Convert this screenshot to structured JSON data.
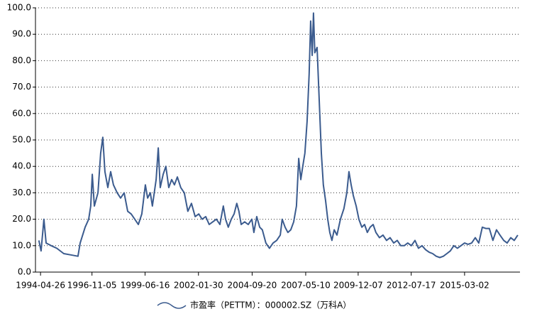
{
  "chart_data": {
    "type": "line",
    "x": [
      "1994-03-27",
      "1994-05-06",
      "1994-06-25",
      "1994-08-04",
      "1994-11-02",
      "1995-02-12",
      "1995-06-17",
      "1995-10-22",
      "1996-02-27",
      "1996-04-07",
      "1996-07-05",
      "1996-09-07",
      "1996-10-14",
      "1996-11-10",
      "1996-12-17",
      "1997-02-20",
      "1997-04-10",
      "1997-05-18",
      "1997-06-25",
      "1997-08-16",
      "1997-10-06",
      "1997-11-25",
      "1998-02-01",
      "1998-04-03",
      "1998-06-05",
      "1998-08-08",
      "1998-10-10",
      "1998-12-13",
      "1999-02-15",
      "1999-04-18",
      "1999-06-21",
      "1999-08-01",
      "1999-09-19",
      "1999-10-26",
      "2000-01-01",
      "2000-02-08",
      "2000-03-15",
      "2000-05-06",
      "2000-06-24",
      "2000-08-15",
      "2000-10-06",
      "2000-11-25",
      "2001-01-16",
      "2001-03-18",
      "2001-05-21",
      "2001-07-24",
      "2001-09-26",
      "2001-12-01",
      "2002-02-04",
      "2002-04-06",
      "2002-06-09",
      "2002-08-11",
      "2002-10-14",
      "2002-12-17",
      "2003-02-19",
      "2003-04-22",
      "2003-06-01",
      "2003-07-20",
      "2003-09-11",
      "2003-11-01",
      "2003-12-20",
      "2004-01-27",
      "2004-03-07",
      "2004-05-09",
      "2004-07-12",
      "2004-09-14",
      "2004-10-22",
      "2004-12-12",
      "2005-02-03",
      "2005-03-22",
      "2005-05-25",
      "2005-07-27",
      "2005-10-02",
      "2005-12-04",
      "2006-02-07",
      "2006-03-14",
      "2006-05-05",
      "2006-06-24",
      "2006-08-15",
      "2006-10-06",
      "2006-11-25",
      "2007-01-04",
      "2007-02-11",
      "2007-03-18",
      "2007-04-25",
      "2007-06-04",
      "2007-07-11",
      "2007-08-07",
      "2007-09-03",
      "2007-09-26",
      "2007-10-21",
      "2007-12-01",
      "2008-01-08",
      "2008-02-15",
      "2008-03-22",
      "2008-05-01",
      "2008-06-08",
      "2008-07-15",
      "2008-08-23",
      "2008-10-02",
      "2008-11-21",
      "2009-01-23",
      "2009-03-26",
      "2009-05-17",
      "2009-06-24",
      "2009-08-03",
      "2009-09-10",
      "2009-11-01",
      "2009-12-20",
      "2010-02-11",
      "2010-04-01",
      "2010-05-20",
      "2010-07-11",
      "2010-09-02",
      "2010-10-21",
      "2010-12-24",
      "2011-02-26",
      "2011-05-01",
      "2011-07-03",
      "2011-09-06",
      "2011-11-09",
      "2012-01-11",
      "2012-03-14",
      "2012-05-16",
      "2012-07-19",
      "2012-09-22",
      "2012-11-24",
      "2013-01-27",
      "2013-04-01",
      "2013-06-04",
      "2013-08-06",
      "2013-10-09",
      "2013-12-12",
      "2014-02-14",
      "2014-04-17",
      "2014-06-19",
      "2014-08-22",
      "2014-10-24",
      "2014-12-27",
      "2015-03-02",
      "2015-05-04",
      "2015-07-07",
      "2015-09-10",
      "2015-11-12",
      "2016-01-15",
      "2016-03-17",
      "2016-05-20",
      "2016-07-22",
      "2016-09-25",
      "2016-11-27",
      "2017-02-02",
      "2017-04-05",
      "2017-06-08",
      "2017-08-10",
      "2017-10-13"
    ],
    "series": [
      {
        "name": "市盈率（PETTM）：000002.SZ（万科A）",
        "color": "#3b5b8e",
        "values": [
          12,
          8,
          20,
          11,
          10,
          9,
          7,
          6.5,
          6,
          11,
          17,
          20,
          25,
          37,
          25,
          30,
          45,
          51,
          38,
          32,
          38,
          33,
          30,
          28,
          30,
          23,
          22,
          20,
          18,
          22,
          33,
          28,
          30,
          25,
          35,
          47,
          32,
          37,
          40,
          32,
          35,
          33,
          36,
          32,
          30,
          23,
          26,
          21,
          22,
          20,
          21,
          18,
          19,
          20,
          18,
          25,
          20,
          17,
          20,
          22,
          26,
          23,
          18,
          19,
          18,
          20,
          15,
          21,
          17,
          16,
          11,
          9,
          11,
          12,
          14,
          20,
          17,
          15,
          16,
          19,
          25,
          43,
          35,
          40,
          45,
          57,
          75,
          95,
          82,
          98,
          83,
          85,
          65,
          45,
          33,
          27,
          20,
          15,
          12,
          16,
          14,
          20,
          24,
          30,
          38,
          33,
          29,
          25,
          20,
          17,
          18,
          15,
          17,
          18,
          15,
          13,
          14,
          12,
          13,
          11,
          12,
          10,
          10,
          11,
          10,
          12,
          9,
          10,
          8.5,
          7.5,
          7,
          6,
          5.5,
          6,
          7,
          8,
          10,
          9,
          10,
          11,
          10.5,
          11,
          13,
          11,
          17,
          16.5,
          16.5,
          12,
          16,
          14,
          12,
          11,
          13,
          12,
          14
        ]
      }
    ],
    "xlim": [
      "1994-01-25",
      "2017-11-21"
    ],
    "xticks": [
      "1994-04-26",
      "1996-11-05",
      "1999-06-16",
      "2002-01-30",
      "2004-09-20",
      "2007-05-10",
      "2009-12-07",
      "2012-07-17",
      "2015-03-02"
    ],
    "ylim": [
      0,
      100
    ],
    "yticks": [
      {
        "value": 0,
        "label": "0.0"
      },
      {
        "value": 10,
        "label": "10.0"
      },
      {
        "value": 20,
        "label": "20.0"
      },
      {
        "value": 30,
        "label": "30.0"
      },
      {
        "value": 40,
        "label": "40.0"
      },
      {
        "value": 50,
        "label": "50.0"
      },
      {
        "value": 60,
        "label": "60.0"
      },
      {
        "value": 70,
        "label": "70.0"
      },
      {
        "value": 80,
        "label": "80.0"
      },
      {
        "value": 90,
        "label": "90.0"
      },
      {
        "value": 100,
        "label": "100.0"
      }
    ],
    "grid": true
  }
}
